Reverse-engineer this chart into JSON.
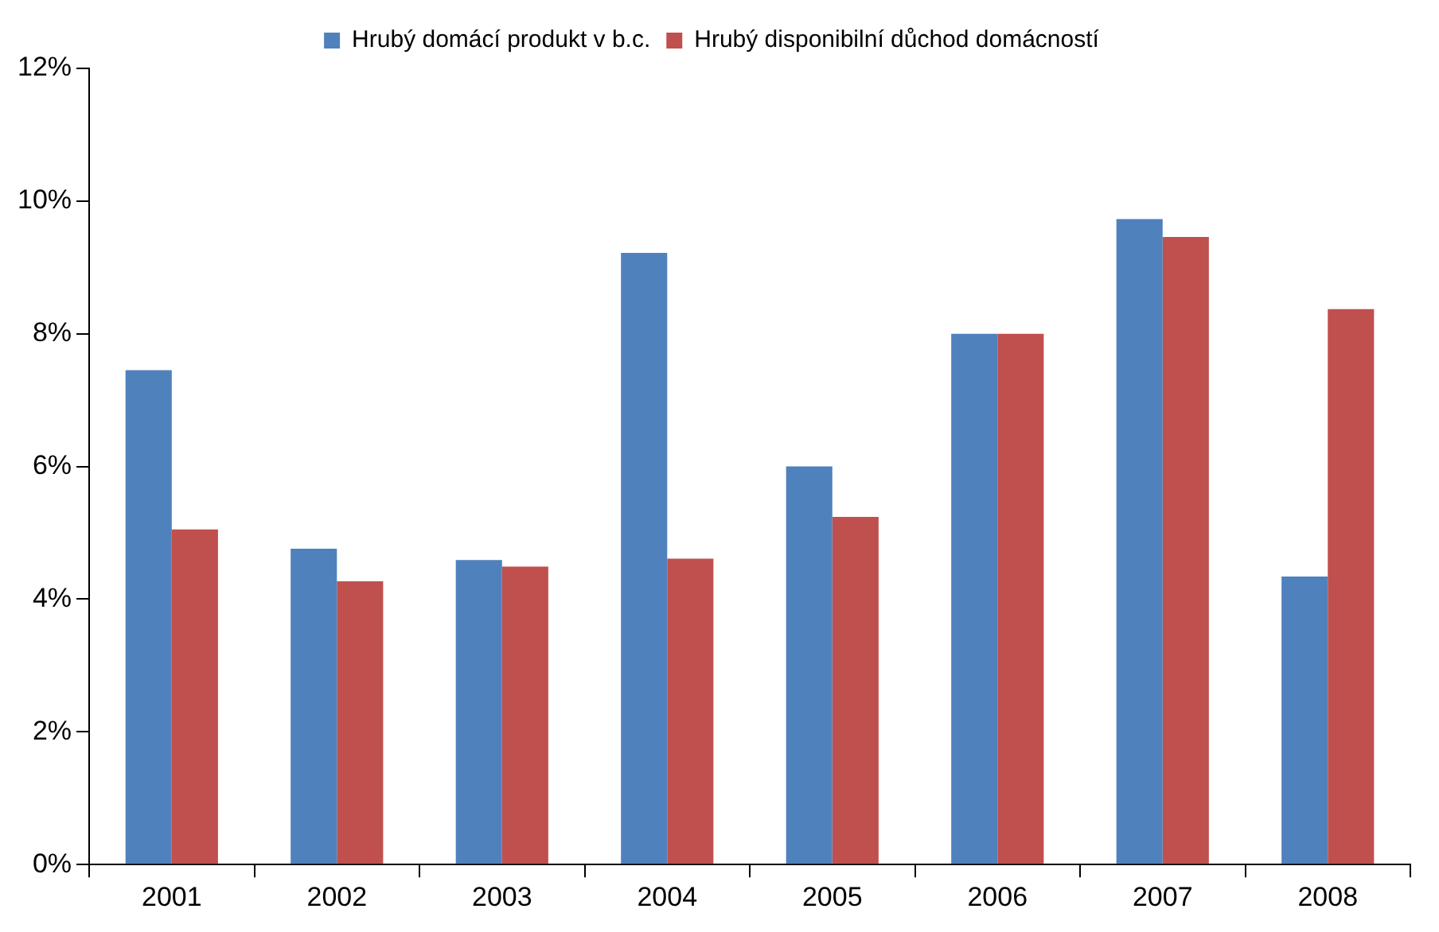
{
  "chart_data": {
    "type": "bar",
    "categories": [
      "2001",
      "2002",
      "2003",
      "2004",
      "2005",
      "2006",
      "2007",
      "2008"
    ],
    "series": [
      {
        "name": "Hrubý domácí produkt v b.c.",
        "color": "#4f81bd",
        "values": [
          7.45,
          4.76,
          4.59,
          9.22,
          6.0,
          8.0,
          9.73,
          4.34
        ]
      },
      {
        "name": "Hrubý disponibilní důchod domácností",
        "color": "#c0504d",
        "values": [
          5.05,
          4.27,
          4.49,
          4.61,
          5.24,
          8.0,
          9.46,
          8.37
        ]
      }
    ],
    "ylim": [
      0,
      12
    ],
    "yticks": [
      {
        "value": 0,
        "label": "0%"
      },
      {
        "value": 2,
        "label": "2%"
      },
      {
        "value": 4,
        "label": "4%"
      },
      {
        "value": 6,
        "label": "6%"
      },
      {
        "value": 8,
        "label": "8%"
      },
      {
        "value": 10,
        "label": "10%"
      },
      {
        "value": 12,
        "label": "12%"
      }
    ],
    "grid": false,
    "legend": "top"
  }
}
